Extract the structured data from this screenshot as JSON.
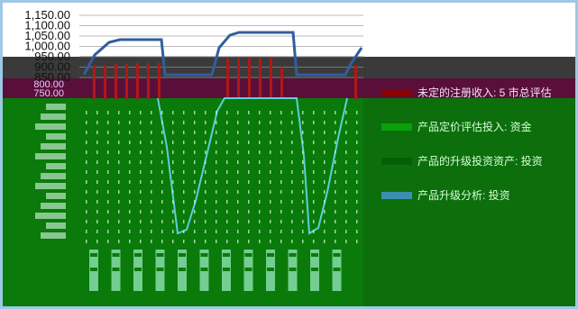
{
  "chart_data": {
    "type": "line",
    "ylim": [
      850,
      1150
    ],
    "y_ticks": [
      "1,150.00",
      "1,100.00",
      "1,050.00",
      "1,000.00",
      "950.00",
      "900.00",
      "850.00"
    ],
    "y_ticks_band": [
      "800.00",
      "750.00"
    ],
    "series_blue": [
      935,
      1010,
      1030,
      1030,
      1030,
      1030,
      1030,
      1030,
      600,
      700,
      800,
      1000,
      1060,
      1060,
      1060,
      1060,
      1060,
      1060,
      700,
      880,
      950,
      1000
    ],
    "series_red": [
      910,
      910,
      915,
      915,
      920,
      920,
      920,
      940,
      945,
      945,
      945,
      945,
      900,
      910
    ]
  },
  "legend": {
    "items": [
      {
        "swatch": "#8b0000",
        "label": "未定的注册收入: 5 市总评估"
      },
      {
        "swatch": "#0aa00a",
        "label": "产品定价评估投入: 资金"
      },
      {
        "swatch": "#055f05",
        "label": "产品的升级投资资产: 投资"
      },
      {
        "swatch": "#3a8fb0",
        "label": "产品升级分析: 投资"
      }
    ]
  },
  "colors": {
    "blue_line": "#2f5f9f",
    "red_bar": "#b01818",
    "dark_band": "#3a3a3a",
    "maroon_band": "#5a0f3a",
    "green_area": "#0a7a0a",
    "cyan_line": "#5cd0d8"
  }
}
